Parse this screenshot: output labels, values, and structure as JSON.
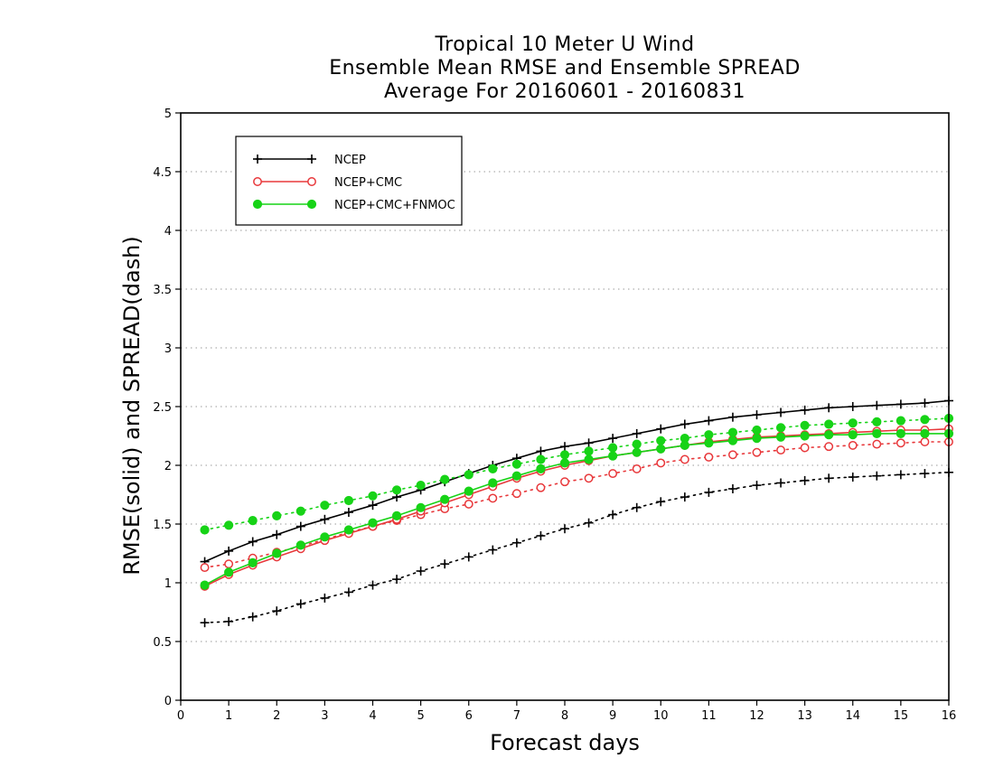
{
  "chart_data": {
    "type": "line",
    "title": [
      "Tropical 10 Meter U Wind",
      "Ensemble Mean RMSE and Ensemble SPREAD",
      "Average For 20160601 - 20160831"
    ],
    "xlabel": "Forecast days",
    "ylabel": "RMSE(solid) and SPREAD(dash)",
    "xlim": [
      0,
      16
    ],
    "ylim": [
      0,
      5
    ],
    "xticks": [
      0,
      1,
      2,
      3,
      4,
      5,
      6,
      7,
      8,
      9,
      10,
      11,
      12,
      13,
      14,
      15,
      16
    ],
    "yticks": [
      0,
      0.5,
      1,
      1.5,
      2,
      2.5,
      3,
      3.5,
      4,
      4.5,
      5
    ],
    "ytick_labels": [
      "0",
      "0.5",
      "1",
      "1.5",
      "2",
      "2.5",
      "3",
      "3.5",
      "4",
      "4.5",
      "5"
    ],
    "grid": "horizontal dotted",
    "legend_position": "top-left",
    "x": [
      0.5,
      1,
      1.5,
      2,
      2.5,
      3,
      3.5,
      4,
      4.5,
      5,
      5.5,
      6,
      6.5,
      7,
      7.5,
      8,
      8.5,
      9,
      9.5,
      10,
      10.5,
      11,
      11.5,
      12,
      12.5,
      13,
      13.5,
      14,
      14.5,
      15,
      15.5,
      16
    ],
    "series": [
      {
        "name": "NCEP",
        "color": "#000000",
        "marker": "plus",
        "rmse": [
          1.18,
          1.27,
          1.35,
          1.41,
          1.48,
          1.54,
          1.6,
          1.66,
          1.73,
          1.79,
          1.86,
          1.93,
          2.0,
          2.06,
          2.12,
          2.16,
          2.19,
          2.23,
          2.27,
          2.31,
          2.35,
          2.38,
          2.41,
          2.43,
          2.45,
          2.47,
          2.49,
          2.5,
          2.51,
          2.52,
          2.53,
          2.55
        ],
        "spread": [
          0.66,
          0.67,
          0.71,
          0.76,
          0.82,
          0.87,
          0.92,
          0.98,
          1.03,
          1.1,
          1.16,
          1.22,
          1.28,
          1.34,
          1.4,
          1.46,
          1.51,
          1.58,
          1.64,
          1.69,
          1.73,
          1.77,
          1.8,
          1.83,
          1.85,
          1.87,
          1.89,
          1.9,
          1.91,
          1.92,
          1.93,
          1.94
        ]
      },
      {
        "name": "NCEP+CMC",
        "color": "#e8383b",
        "marker": "open-circle",
        "rmse": [
          0.97,
          1.07,
          1.15,
          1.22,
          1.29,
          1.36,
          1.42,
          1.48,
          1.54,
          1.61,
          1.68,
          1.75,
          1.82,
          1.89,
          1.95,
          2.0,
          2.04,
          2.08,
          2.11,
          2.14,
          2.17,
          2.2,
          2.22,
          2.24,
          2.25,
          2.26,
          2.27,
          2.28,
          2.29,
          2.3,
          2.3,
          2.31
        ],
        "spread": [
          1.13,
          1.16,
          1.21,
          1.26,
          1.31,
          1.37,
          1.43,
          1.48,
          1.53,
          1.58,
          1.63,
          1.67,
          1.72,
          1.76,
          1.81,
          1.86,
          1.89,
          1.93,
          1.97,
          2.02,
          2.05,
          2.07,
          2.09,
          2.11,
          2.13,
          2.15,
          2.16,
          2.17,
          2.18,
          2.19,
          2.2,
          2.2
        ]
      },
      {
        "name": "NCEP+CMC+FNMOC",
        "color": "#17d317",
        "marker": "filled-circle",
        "rmse": [
          0.98,
          1.09,
          1.17,
          1.25,
          1.32,
          1.39,
          1.45,
          1.51,
          1.57,
          1.64,
          1.71,
          1.78,
          1.85,
          1.91,
          1.97,
          2.02,
          2.05,
          2.08,
          2.11,
          2.14,
          2.17,
          2.19,
          2.21,
          2.23,
          2.24,
          2.25,
          2.26,
          2.26,
          2.27,
          2.27,
          2.27,
          2.27
        ],
        "spread": [
          1.45,
          1.49,
          1.53,
          1.57,
          1.61,
          1.66,
          1.7,
          1.74,
          1.79,
          1.83,
          1.88,
          1.92,
          1.97,
          2.01,
          2.05,
          2.09,
          2.12,
          2.15,
          2.18,
          2.21,
          2.23,
          2.26,
          2.28,
          2.3,
          2.32,
          2.34,
          2.35,
          2.36,
          2.37,
          2.38,
          2.39,
          2.4
        ]
      }
    ]
  }
}
